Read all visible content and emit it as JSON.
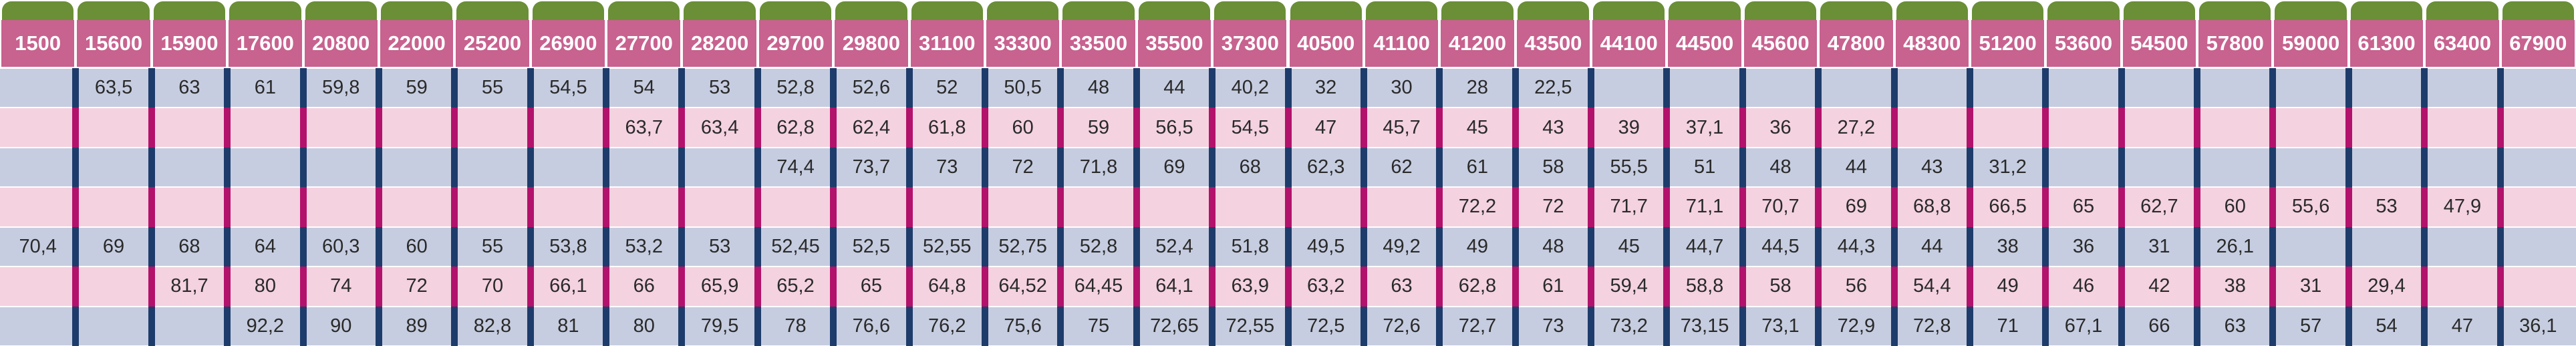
{
  "table": {
    "header": [
      "1500",
      "15600",
      "15900",
      "17600",
      "20800",
      "22000",
      "25200",
      "26900",
      "27700",
      "28200",
      "29700",
      "29800",
      "31100",
      "33300",
      "33500",
      "35500",
      "37300",
      "40500",
      "41100",
      "41200",
      "43500",
      "44100",
      "44500",
      "45600",
      "47800",
      "48300",
      "51200",
      "53600",
      "54500",
      "57800",
      "59000",
      "61300",
      "63400",
      "67900"
    ],
    "rows": [
      [
        null,
        "63,5",
        "63",
        "61",
        "59,8",
        "59",
        "55",
        "54,5",
        "54",
        "53",
        "52,8",
        "52,6",
        "52",
        "50,5",
        "48",
        "44",
        "40,2",
        "32",
        "30",
        "28",
        "22,5",
        null,
        null,
        null,
        null,
        null,
        null,
        null,
        null,
        null,
        null,
        null,
        null,
        null
      ],
      [
        null,
        null,
        null,
        null,
        null,
        null,
        null,
        null,
        "63,7",
        "63,4",
        "62,8",
        "62,4",
        "61,8",
        "60",
        "59",
        "56,5",
        "54,5",
        "47",
        "45,7",
        "45",
        "43",
        "39",
        "37,1",
        "36",
        "27,2",
        null,
        null,
        null,
        null,
        null,
        null,
        null,
        null,
        null
      ],
      [
        null,
        null,
        null,
        null,
        null,
        null,
        null,
        null,
        null,
        null,
        "74,4",
        "73,7",
        "73",
        "72",
        "71,8",
        "69",
        "68",
        "62,3",
        "62",
        "61",
        "58",
        "55,5",
        "51",
        "48",
        "44",
        "43",
        "31,2",
        null,
        null,
        null,
        null,
        null,
        null,
        null
      ],
      [
        null,
        null,
        null,
        null,
        null,
        null,
        null,
        null,
        null,
        null,
        null,
        null,
        null,
        null,
        null,
        null,
        null,
        null,
        null,
        "72,2",
        "72",
        "71,7",
        "71,1",
        "70,7",
        "69",
        "68,8",
        "66,5",
        "65",
        "62,7",
        "60",
        "55,6",
        "53",
        "47,9",
        null
      ],
      [
        "70,4",
        "69",
        "68",
        "64",
        "60,3",
        "60",
        "55",
        "53,8",
        "53,2",
        "53",
        "52,45",
        "52,5",
        "52,55",
        "52,75",
        "52,8",
        "52,4",
        "51,8",
        "49,5",
        "49,2",
        "49",
        "48",
        "45",
        "44,7",
        "44,5",
        "44,3",
        "44",
        "38",
        "36",
        "31",
        "26,1",
        null,
        null,
        null,
        null
      ],
      [
        null,
        null,
        "81,7",
        "80",
        "74",
        "72",
        "70",
        "66,1",
        "66",
        "65,9",
        "65,2",
        "65",
        "64,8",
        "64,52",
        "64,45",
        "64,1",
        "63,9",
        "63,2",
        "63",
        "62,8",
        "61",
        "59,4",
        "58,8",
        "58",
        "56",
        "54,4",
        "49",
        "46",
        "42",
        "38",
        "31",
        "29,4",
        null,
        null
      ],
      [
        null,
        null,
        null,
        "92,2",
        "90",
        "89",
        "82,8",
        "81",
        "80",
        "79,5",
        "78",
        "76,6",
        "76,2",
        "75,6",
        "75",
        "72,65",
        "72,55",
        "72,5",
        "72,6",
        "72,7",
        "73",
        "73,2",
        "73,15",
        "73,1",
        "72,9",
        "72,8",
        "71",
        "67,1",
        "66",
        "63",
        "57",
        "54",
        "47",
        "36,1"
      ]
    ]
  }
}
